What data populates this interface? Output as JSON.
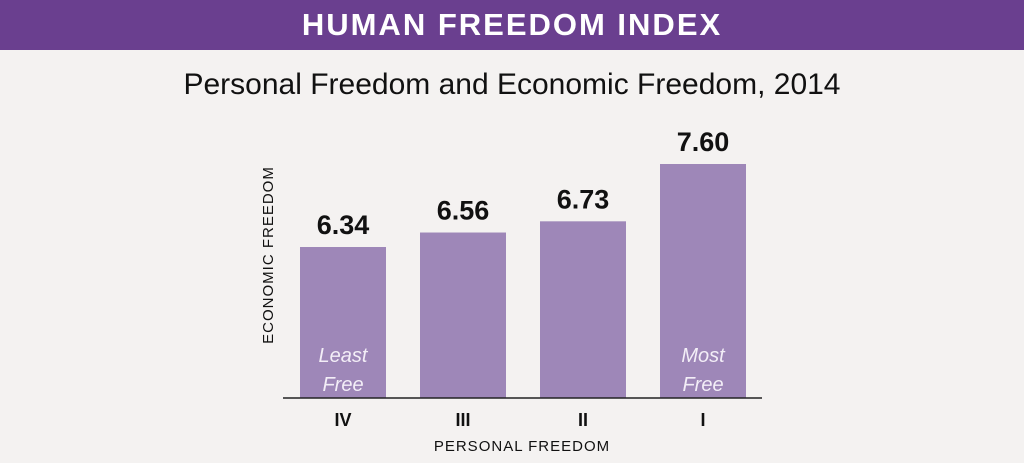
{
  "header": {
    "title": "HUMAN FREEDOM INDEX"
  },
  "colors": {
    "banner": "#6a3f8f",
    "bar": "#9e87b8",
    "background": "#f4f2f1"
  },
  "chart_data": {
    "type": "bar",
    "title": "Personal Freedom and Economic Freedom, 2014",
    "xlabel": "PERSONAL FREEDOM",
    "ylabel": "ECONOMIC FREEDOM",
    "categories": [
      "IV",
      "III",
      "II",
      "I"
    ],
    "values": [
      6.34,
      6.56,
      6.73,
      7.6
    ],
    "value_labels": [
      "6.34",
      "6.56",
      "6.73",
      "7.60"
    ],
    "annotations": [
      {
        "category": "IV",
        "lines": [
          "Least",
          "Free"
        ]
      },
      {
        "category": "I",
        "lines": [
          "Most",
          "Free"
        ]
      }
    ],
    "grid": false,
    "legend": "none"
  }
}
